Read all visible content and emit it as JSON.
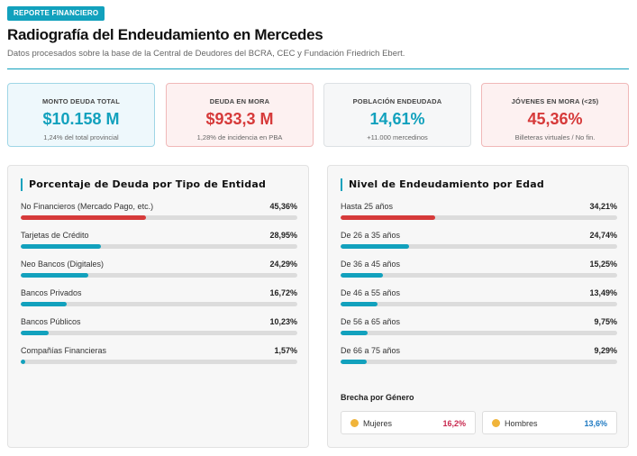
{
  "header": {
    "badge": "REPORTE FINANCIERO",
    "title": "Radiografía del Endeudamiento en Mercedes",
    "subtitle": "Datos procesados sobre la base de la Central de Deudores del BCRA, CEC y Fundación Friedrich Ebert."
  },
  "colors": {
    "accent": "#12a1bd",
    "danger": "#d63a3a",
    "women": "#c8284e",
    "men": "#1f7ac2"
  },
  "kpis": [
    {
      "label": "MONTO DEUDA TOTAL",
      "value": "$10.158 M",
      "note": "1,24% del total provincial",
      "tone": "blue"
    },
    {
      "label": "DEUDA EN MORA",
      "value": "$933,3 M",
      "note": "1,28% de incidencia en PBA",
      "tone": "red"
    },
    {
      "label": "POBLACIÓN ENDEUDADA",
      "value": "14,61%",
      "note": "+11.000 mercedinos",
      "tone": "gray"
    },
    {
      "label": "JÓVENES EN MORA (<25)",
      "value": "45,36%",
      "note": "Billeteras virtuales / No fin.",
      "tone": "red"
    }
  ],
  "chart_data": [
    {
      "type": "bar",
      "title": "Porcentaje de Deuda por Tipo de Entidad",
      "categories": [
        "No Financieros (Mercado Pago, etc.)",
        "Tarjetas de Crédito",
        "Neo Bancos (Digitales)",
        "Bancos Privados",
        "Bancos Públicos",
        "Compañías Financieras"
      ],
      "values": [
        45.36,
        28.95,
        24.29,
        16.72,
        10.23,
        1.57
      ],
      "value_labels": [
        "45,36%",
        "28,95%",
        "24,29%",
        "16,72%",
        "10,23%",
        "1,57%"
      ],
      "highlight_index": 0,
      "xlim": [
        0,
        100
      ]
    },
    {
      "type": "bar",
      "title": "Nivel de Endeudamiento por Edad",
      "categories": [
        "Hasta 25 años",
        "De 26 a 35 años",
        "De 36 a 45 años",
        "De 46 a 55 años",
        "De 56 a 65 años",
        "De 66 a 75 años"
      ],
      "values": [
        34.21,
        24.74,
        15.25,
        13.49,
        9.75,
        9.29
      ],
      "value_labels": [
        "34,21%",
        "24,74%",
        "15,25%",
        "13,49%",
        "9,75%",
        "9,29%"
      ],
      "highlight_index": 0,
      "xlim": [
        0,
        100
      ]
    }
  ],
  "gender": {
    "title": "Brecha por Género",
    "women": {
      "icon": "woman-icon",
      "label": "Mujeres",
      "value": "16,2%"
    },
    "men": {
      "icon": "man-icon",
      "label": "Hombres",
      "value": "13,6%"
    }
  }
}
